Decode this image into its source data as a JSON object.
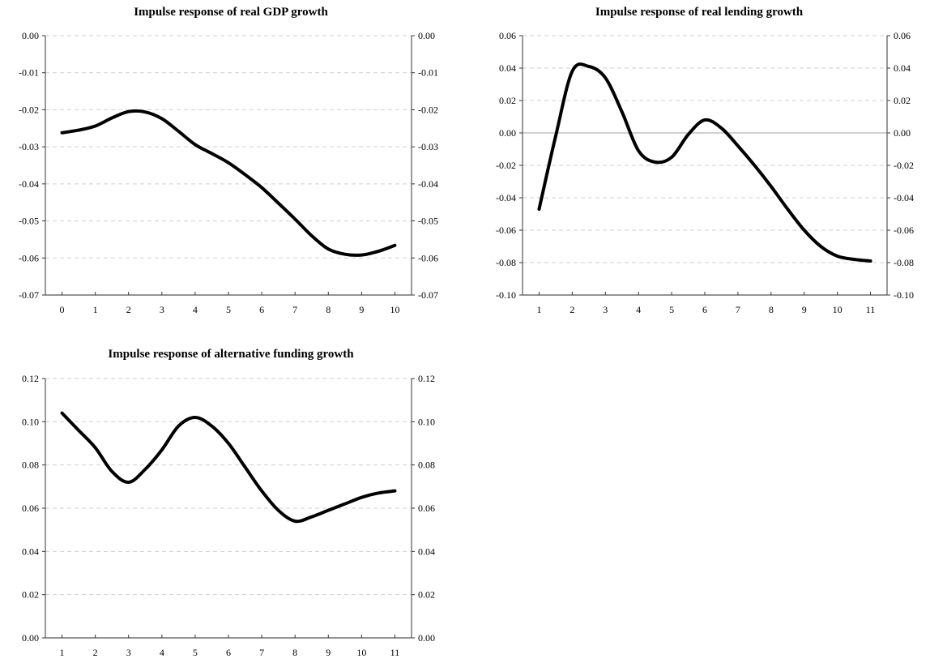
{
  "chart_data": [
    {
      "type": "line",
      "title": "Impulse response of real GDP growth",
      "xlabel": "",
      "ylabel": "",
      "x": [
        0,
        0.5,
        1,
        1.5,
        2,
        2.5,
        3,
        3.5,
        4,
        4.5,
        5,
        5.5,
        6,
        6.5,
        7,
        7.5,
        8,
        8.5,
        9,
        9.5,
        10
      ],
      "series": [
        {
          "values": [
            -0.0262,
            -0.0255,
            -0.0244,
            -0.0222,
            -0.0205,
            -0.0206,
            -0.0224,
            -0.0258,
            -0.0294,
            -0.0318,
            -0.0343,
            -0.0375,
            -0.041,
            -0.0452,
            -0.0495,
            -0.054,
            -0.0576,
            -0.059,
            -0.0592,
            -0.0582,
            -0.0566
          ]
        }
      ],
      "xticks": [
        "0",
        "1",
        "2",
        "3",
        "4",
        "5",
        "6",
        "7",
        "8",
        "9",
        "10"
      ],
      "yticks": [
        "0.00",
        "-0.01",
        "-0.02",
        "-0.03",
        "-0.04",
        "-0.05",
        "-0.06",
        "-0.07"
      ],
      "ylim": [
        -0.07,
        0.0
      ],
      "xlim": [
        -0.5,
        10.5
      ],
      "grid": true,
      "dual_y_axis": true
    },
    {
      "type": "line",
      "title": "Impulse response of real lending growth",
      "xlabel": "",
      "ylabel": "",
      "x": [
        1,
        1.5,
        2,
        2.5,
        3,
        3.5,
        4,
        4.5,
        5,
        5.5,
        6,
        6.5,
        7,
        7.5,
        8,
        8.5,
        9,
        9.5,
        10,
        10.5,
        11
      ],
      "series": [
        {
          "values": [
            -0.047,
            -0.002,
            0.038,
            0.041,
            0.034,
            0.013,
            -0.011,
            -0.018,
            -0.015,
            -0.001,
            0.008,
            0.003,
            -0.008,
            -0.02,
            -0.033,
            -0.047,
            -0.06,
            -0.07,
            -0.076,
            -0.078,
            -0.079
          ]
        }
      ],
      "xticks": [
        "1",
        "2",
        "3",
        "4",
        "5",
        "6",
        "7",
        "8",
        "9",
        "10",
        "11"
      ],
      "yticks": [
        "0.06",
        "0.04",
        "0.02",
        "0.00",
        "-0.02",
        "-0.04",
        "-0.06",
        "-0.08",
        "-0.10"
      ],
      "ylim": [
        -0.1,
        0.06
      ],
      "xlim": [
        0.5,
        11.5
      ],
      "grid": true,
      "zero_line": true,
      "dual_y_axis": true
    },
    {
      "type": "line",
      "title": "Impulse response of alternative funding growth",
      "xlabel": "",
      "ylabel": "",
      "x": [
        1,
        1.5,
        2,
        2.5,
        3,
        3.5,
        4,
        4.5,
        5,
        5.5,
        6,
        6.5,
        7,
        7.5,
        8,
        8.5,
        9,
        9.5,
        10,
        10.5,
        11
      ],
      "series": [
        {
          "values": [
            0.104,
            0.096,
            0.088,
            0.077,
            0.072,
            0.078,
            0.087,
            0.098,
            0.102,
            0.098,
            0.09,
            0.079,
            0.068,
            0.059,
            0.054,
            0.056,
            0.059,
            0.062,
            0.065,
            0.067,
            0.068
          ]
        }
      ],
      "xticks": [
        "1",
        "2",
        "3",
        "4",
        "5",
        "6",
        "7",
        "8",
        "9",
        "10",
        "11"
      ],
      "yticks": [
        "0.12",
        "0.10",
        "0.08",
        "0.06",
        "0.04",
        "0.02",
        "0.00"
      ],
      "ylim": [
        0.0,
        0.12
      ],
      "xlim": [
        0.5,
        11.5
      ],
      "grid": true,
      "dual_y_axis": true
    }
  ]
}
